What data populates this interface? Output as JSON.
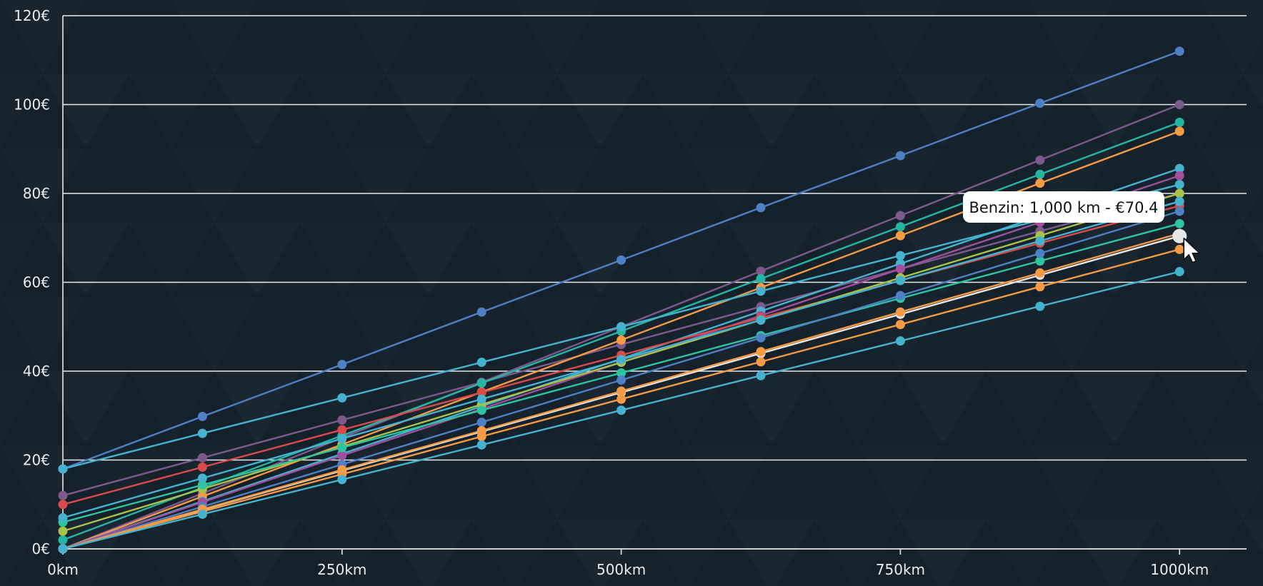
{
  "chart_data": {
    "type": "line",
    "x": [
      0,
      125,
      250,
      375,
      500,
      625,
      750,
      875,
      1000
    ],
    "x_ticks": [
      0,
      250,
      500,
      750,
      1000
    ],
    "x_tick_labels": [
      "0km",
      "250km",
      "500km",
      "750km",
      "1000km"
    ],
    "y_ticks": [
      0,
      20,
      40,
      60,
      80,
      100,
      120
    ],
    "y_tick_labels": [
      "0€",
      "20€",
      "40€",
      "60€",
      "80€",
      "100€",
      "120€"
    ],
    "xlim": [
      0,
      1060
    ],
    "ylim": [
      0,
      120
    ],
    "grid": true,
    "series": [
      {
        "color": "#4f7fc4",
        "values": [
          18.0,
          29.8,
          41.5,
          53.3,
          65.0,
          76.8,
          88.5,
          100.3,
          112.0
        ]
      },
      {
        "color": "#7d5a8c",
        "values": [
          12.0,
          20.5,
          29.0,
          37.5,
          46.0,
          54.5,
          63.0,
          71.5,
          80.0
        ]
      },
      {
        "color": "#7d5a8c",
        "values": [
          0.0,
          12.5,
          25.0,
          37.5,
          50.0,
          62.5,
          75.0,
          87.5,
          100.0
        ]
      },
      {
        "color": "#26b5a3",
        "values": [
          2.0,
          13.8,
          25.5,
          37.3,
          49.0,
          60.8,
          72.5,
          84.3,
          96.0
        ]
      },
      {
        "color": "#f59a45",
        "values": [
          0.0,
          11.8,
          23.5,
          35.3,
          47.0,
          58.8,
          70.5,
          82.3,
          94.0
        ]
      },
      {
        "color": "#45b3d0",
        "values": [
          18.0,
          26.0,
          34.0,
          42.0,
          50.0,
          58.0,
          66.0,
          74.0,
          82.0
        ]
      },
      {
        "color": "#45b3d0",
        "values": [
          0.0,
          10.7,
          21.4,
          32.1,
          42.8,
          53.5,
          64.2,
          74.9,
          85.6
        ]
      },
      {
        "color": "#a04f9c",
        "values": [
          0.0,
          10.5,
          21.0,
          31.5,
          42.0,
          52.5,
          63.0,
          73.5,
          84.0
        ]
      },
      {
        "color": "#d94b4b",
        "values": [
          10.0,
          18.4,
          26.8,
          35.2,
          43.6,
          52.0,
          60.4,
          68.8,
          77.2
        ]
      },
      {
        "color": "#a8c24a",
        "values": [
          4.0,
          13.5,
          23.0,
          32.5,
          42.0,
          51.5,
          61.0,
          70.5,
          80.0
        ]
      },
      {
        "color": "#2ec4a0",
        "values": [
          6.0,
          14.4,
          22.8,
          31.2,
          39.6,
          48.0,
          56.4,
          64.8,
          73.2
        ]
      },
      {
        "color": "#4f7fc4",
        "values": [
          0.0,
          9.5,
          19.0,
          28.5,
          38.0,
          47.5,
          57.0,
          66.5,
          76.0
        ]
      },
      {
        "color": "#45b3d0",
        "values": [
          7.0,
          15.9,
          24.8,
          33.7,
          42.6,
          51.5,
          60.4,
          69.3,
          78.2
        ]
      },
      {
        "color": "#e7e7e7",
        "values": [
          0.0,
          8.8,
          17.6,
          26.4,
          35.2,
          44.0,
          52.8,
          61.6,
          70.4
        ]
      },
      {
        "color": "#f59a45",
        "values": [
          0.0,
          8.9,
          17.8,
          26.6,
          35.5,
          44.4,
          53.3,
          62.1,
          71.0
        ]
      },
      {
        "color": "#f59a45",
        "values": [
          0.0,
          8.4,
          16.8,
          25.3,
          33.7,
          42.1,
          50.5,
          59.0,
          67.4
        ]
      },
      {
        "color": "#45b3d0",
        "values": [
          0.0,
          7.8,
          15.6,
          23.4,
          31.2,
          39.0,
          46.8,
          54.6,
          62.4
        ]
      }
    ],
    "tooltip": {
      "text": "Benzin: 1,000 km - €70.4",
      "series_index": 13,
      "point_index": 8
    }
  }
}
